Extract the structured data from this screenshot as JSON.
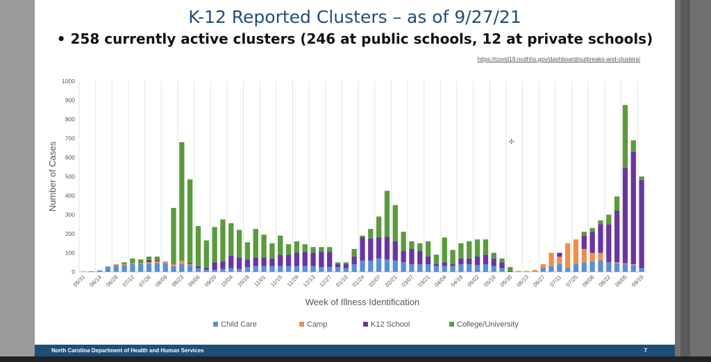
{
  "slide": {
    "title": "K-12 Reported Clusters – as of 9/27/21",
    "subtitle": "• 258 currently active clusters (246 at public schools, 12 at private schools)",
    "source_link": "https://covid19.ncdhhs.gov/dashboard/outbreaks-and-clusters/",
    "footer_org": "North Carolina Department of Health and Human Services",
    "page_number": "7"
  },
  "colors": {
    "Child Care": "#5b8fd4",
    "Camp": "#ed8f4c",
    "K12 School": "#6a35a0",
    "College/University": "#5b9a3d"
  },
  "chart_data": {
    "type": "bar",
    "stacked": true,
    "xlabel": "Week of Illness Identification",
    "ylabel": "Number of Cases",
    "ylim": [
      0,
      1000
    ],
    "yticks": [
      0,
      100,
      200,
      300,
      400,
      500,
      600,
      700,
      800,
      900,
      1000
    ],
    "grid": "vertical",
    "legend": "bottom",
    "tick_labels": [
      "05/31",
      "06/14",
      "06/28",
      "07/12",
      "07/26",
      "08/09",
      "08/23",
      "09/06",
      "09/20",
      "10/04",
      "10/18",
      "11/01",
      "11/15",
      "11/29",
      "12/13",
      "12/27",
      "01/10",
      "01/24",
      "02/07",
      "02/21",
      "03/07",
      "03/21",
      "04/04",
      "04/18",
      "05/02",
      "05/16",
      "05/30",
      "06/13",
      "06/27",
      "07/11",
      "07/25",
      "08/08",
      "08/22",
      "09/05",
      "09/19"
    ],
    "categories": [
      "05/31",
      "06/07",
      "06/14",
      "06/21",
      "06/28",
      "07/05",
      "07/12",
      "07/19",
      "07/26",
      "08/02",
      "08/09",
      "08/16",
      "08/23",
      "08/30",
      "09/06",
      "09/13",
      "09/20",
      "09/27",
      "10/04",
      "10/11",
      "10/18",
      "10/25",
      "11/01",
      "11/08",
      "11/15",
      "11/22",
      "11/29",
      "12/06",
      "12/13",
      "12/20",
      "12/27",
      "01/03",
      "01/10",
      "01/17",
      "01/24",
      "01/31",
      "02/07",
      "02/14",
      "02/21",
      "02/28",
      "03/07",
      "03/14",
      "03/21",
      "03/28",
      "04/04",
      "04/11",
      "04/18",
      "04/25",
      "05/02",
      "05/09",
      "05/16",
      "05/23",
      "05/30",
      "06/06",
      "06/13",
      "06/20",
      "06/27",
      "07/04",
      "07/11",
      "07/18",
      "07/25",
      "08/01",
      "08/08",
      "08/15",
      "08/22",
      "08/29",
      "09/05",
      "09/12",
      "09/19"
    ],
    "series": [
      {
        "name": "Child Care",
        "values": [
          2,
          3,
          8,
          28,
          35,
          35,
          40,
          40,
          40,
          45,
          45,
          30,
          40,
          35,
          20,
          10,
          10,
          15,
          20,
          15,
          25,
          30,
          30,
          30,
          30,
          30,
          30,
          30,
          30,
          25,
          25,
          25,
          20,
          40,
          60,
          60,
          70,
          65,
          60,
          50,
          40,
          40,
          40,
          30,
          30,
          30,
          40,
          40,
          35,
          40,
          30,
          20,
          0,
          0,
          0,
          0,
          20,
          30,
          40,
          20,
          40,
          50,
          55,
          60,
          50,
          45,
          40,
          35,
          20
        ]
      },
      {
        "name": "Camp",
        "values": [
          0,
          0,
          0,
          0,
          5,
          5,
          5,
          5,
          10,
          10,
          10,
          10,
          20,
          5,
          0,
          0,
          0,
          0,
          0,
          0,
          0,
          0,
          0,
          0,
          0,
          0,
          0,
          0,
          0,
          0,
          0,
          0,
          0,
          0,
          0,
          0,
          0,
          0,
          0,
          0,
          0,
          0,
          0,
          0,
          0,
          0,
          0,
          0,
          0,
          0,
          0,
          0,
          0,
          5,
          5,
          10,
          20,
          70,
          40,
          130,
          130,
          70,
          45,
          40,
          0,
          5,
          5,
          5,
          0
        ]
      },
      {
        "name": "K12 School",
        "values": [
          0,
          0,
          0,
          0,
          0,
          0,
          0,
          0,
          10,
          5,
          0,
          0,
          0,
          5,
          10,
          10,
          40,
          40,
          65,
          60,
          40,
          45,
          45,
          40,
          60,
          60,
          70,
          75,
          70,
          80,
          80,
          15,
          20,
          40,
          120,
          115,
          110,
          120,
          100,
          60,
          80,
          70,
          40,
          10,
          20,
          10,
          30,
          30,
          45,
          50,
          40,
          30,
          5,
          0,
          0,
          0,
          0,
          0,
          20,
          0,
          0,
          70,
          110,
          150,
          200,
          270,
          500,
          590,
          460
        ]
      },
      {
        "name": "College/University",
        "values": [
          0,
          0,
          0,
          0,
          0,
          10,
          25,
          20,
          20,
          20,
          0,
          295,
          620,
          440,
          210,
          145,
          185,
          220,
          170,
          145,
          90,
          150,
          120,
          80,
          100,
          55,
          60,
          40,
          30,
          25,
          25,
          10,
          10,
          40,
          10,
          50,
          110,
          240,
          190,
          100,
          40,
          40,
          80,
          50,
          130,
          75,
          80,
          90,
          90,
          80,
          30,
          20,
          20,
          0,
          0,
          0,
          0,
          0,
          0,
          0,
          0,
          20,
          20,
          20,
          50,
          75,
          330,
          60,
          20
        ]
      }
    ]
  }
}
